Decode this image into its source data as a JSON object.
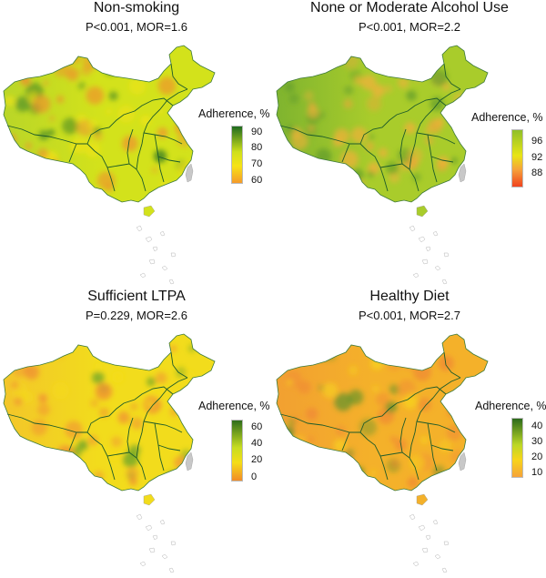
{
  "legend_title": "Adherence, %",
  "panels": [
    {
      "title": "Non-smoking",
      "stat": "P<0.001, MOR=1.6",
      "ticks": [
        "90",
        "80",
        "70",
        "60"
      ],
      "colors": {
        "top": "#1f6b1f",
        "mid": "#cfe01a",
        "low": "#f6e316",
        "bottom": "#f59a2a",
        "base": "#d3e21b",
        "west": "#b9d628",
        "spot": "#f28a2e",
        "dark": "#2f7a25"
      }
    },
    {
      "title": "None or Moderate Alcohol Use",
      "stat": "P<0.001, MOR=2.2",
      "ticks": [
        "96",
        "92",
        "88"
      ],
      "colors": {
        "top": "#8fbf2a",
        "mid": "#e8e516",
        "low": "#f6a23a",
        "bottom": "#f0431f",
        "base": "#a9cc2b",
        "west": "#7fb42f",
        "spot": "#f3b03a",
        "dark": "#5e9a2a"
      }
    },
    {
      "title": "Sufficient LTPA",
      "stat": "P=0.229, MOR=2.6",
      "ticks": [
        "60",
        "40",
        "20",
        "0"
      ],
      "colors": {
        "top": "#2e6d1c",
        "mid": "#c7dd20",
        "low": "#f5dd17",
        "bottom": "#f28c28",
        "base": "#f2dc1c",
        "west": "#f3c62a",
        "spot": "#f08a34",
        "dark": "#5a9c2a"
      }
    },
    {
      "title": "Healthy Diet",
      "stat": "P<0.001, MOR=2.7",
      "ticks": [
        "40",
        "30",
        "20",
        "10"
      ],
      "colors": {
        "top": "#2b6a1c",
        "mid": "#bcd726",
        "low": "#f7d51a",
        "bottom": "#f6a33a",
        "base": "#f4b12a",
        "west": "#f2a031",
        "spot": "#f08834",
        "dark": "#4e8f2a"
      }
    }
  ]
}
